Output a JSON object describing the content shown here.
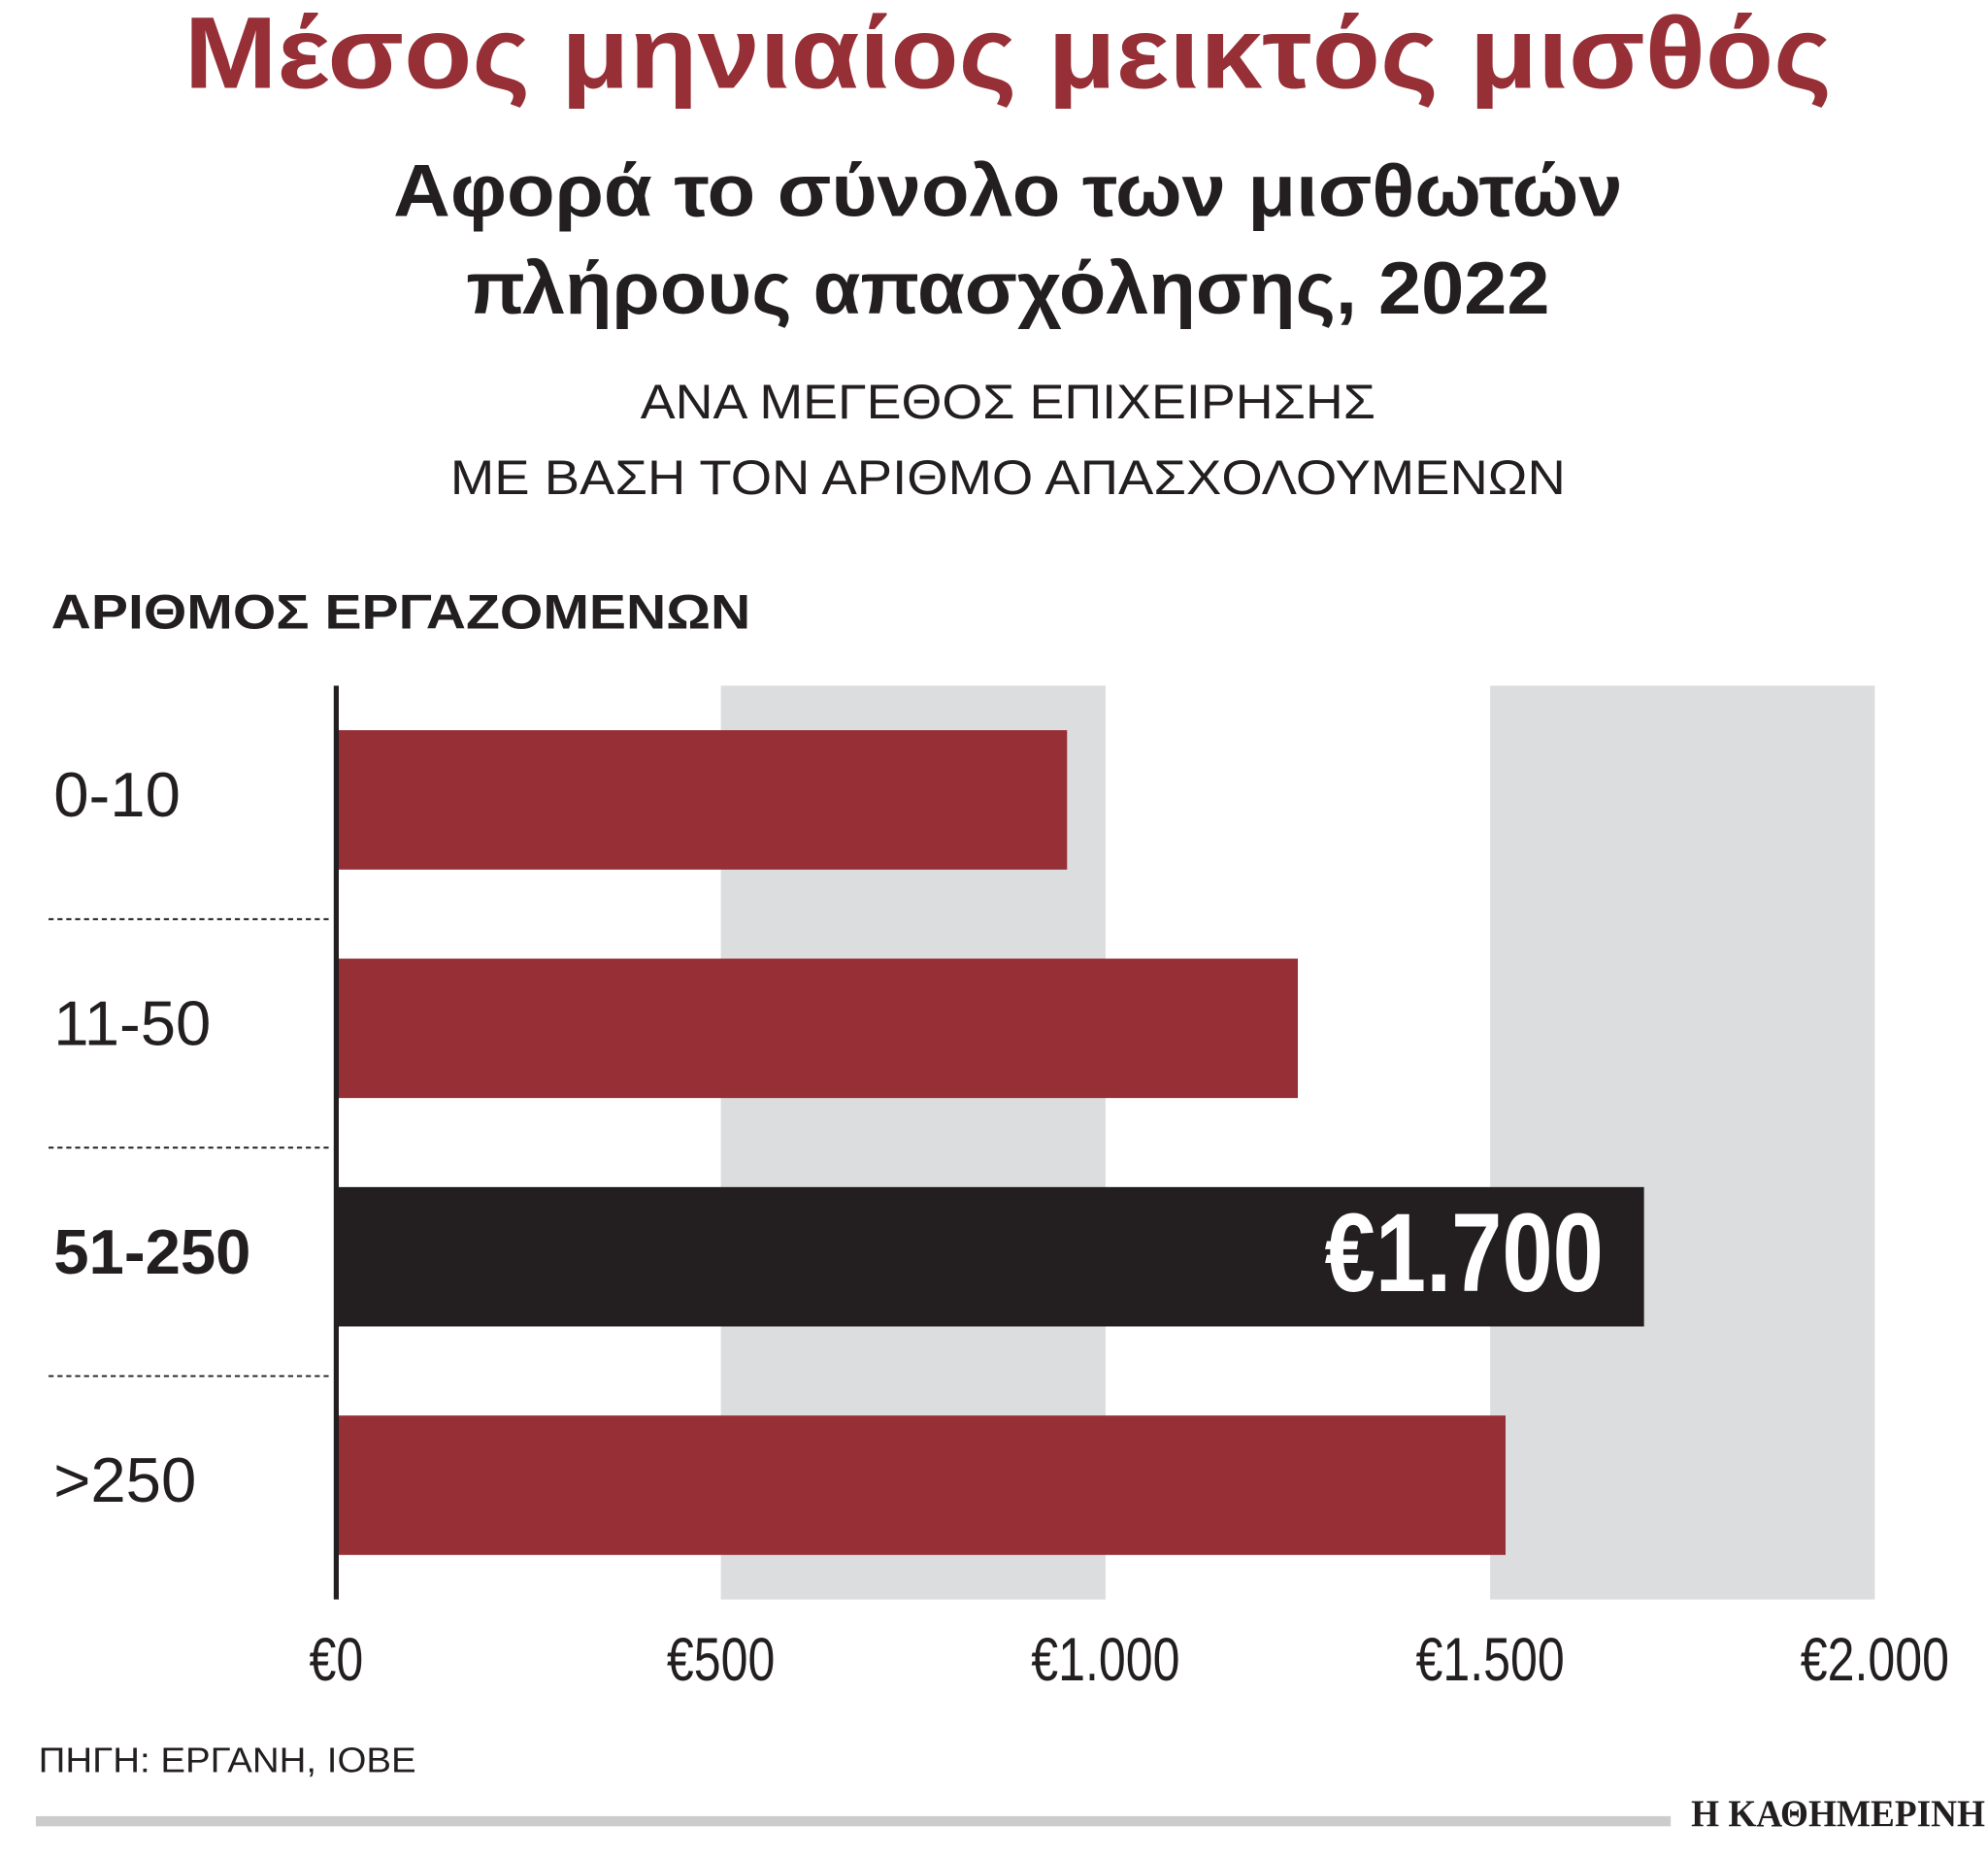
{
  "chart_data": {
    "type": "bar",
    "orientation": "horizontal",
    "title": "Μέσος μηνιαίος μεικτός μισθός",
    "subtitle": [
      "Αφορά το σύνολο των μισθωτών",
      "πλήρους απασχόλησης, 2022"
    ],
    "note": [
      "ΑΝΑ ΜΕΓΕΘΟΣ ΕΠΙΧΕΙΡΗΣΗΣ",
      "ΜΕ ΒΑΣΗ ΤΟΝ ΑΡΙΘΜΟ ΑΠΑΣΧΟΛΟΥΜΕΝΩΝ"
    ],
    "y_label": "ΑΡΙΘΜΟΣ ΕΡΓΑΖΟΜΕΝΩΝ",
    "categories": [
      "0-10",
      "11-50",
      "51-250",
      ">250"
    ],
    "values": [
      950,
      1250,
      1700,
      1520
    ],
    "value_labels": [
      null,
      null,
      "€1.700",
      null
    ],
    "colors": [
      "#962f36",
      "#962f36",
      "#231f20",
      "#962f36"
    ],
    "highlight": 2,
    "xlim": [
      0,
      2000
    ],
    "xticks": [
      {
        "value": 0,
        "label": "€0"
      },
      {
        "value": 500,
        "label": "€500"
      },
      {
        "value": 1000,
        "label": "€1.000"
      },
      {
        "value": 1500,
        "label": "€1.500"
      },
      {
        "value": 2000,
        "label": "€2.000"
      }
    ],
    "grid": true,
    "source": "ΠΗΓΗ: ΕΡΓΑΝΗ, ΙΟΒΕ",
    "brand": "Η ΚΑΘΗΜΕΡΙΝΗ"
  }
}
